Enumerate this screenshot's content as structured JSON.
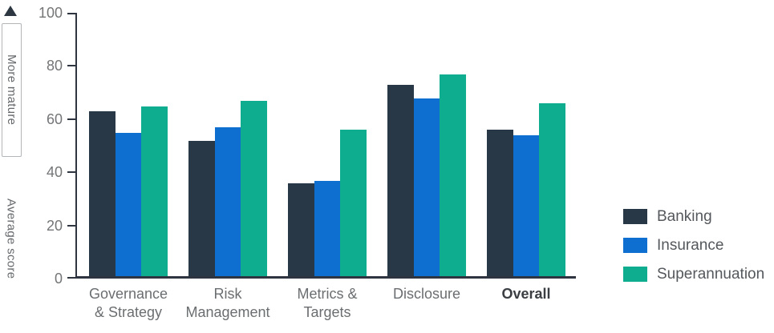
{
  "left_rail": {
    "more_mature_label": "More mature",
    "average_score_label": "Average score"
  },
  "chart_data": {
    "type": "bar",
    "title": "",
    "xlabel": "",
    "ylabel": "Average score",
    "ylim": [
      0,
      100
    ],
    "yticks": [
      0,
      20,
      40,
      60,
      80,
      100
    ],
    "grid": false,
    "legend_position": "right",
    "annotation": "More mature (upward arrow indicates higher scores are more mature)",
    "categories": [
      "Governance\n& Strategy",
      "Risk\nManagement",
      "Metrics &\nTargets",
      "Disclosure",
      "Overall"
    ],
    "emphasized_category": "Overall",
    "series": [
      {
        "name": "Banking",
        "color": "#283847",
        "values": [
          62,
          51,
          35,
          72,
          55
        ]
      },
      {
        "name": "Insurance",
        "color": "#0e6fd0",
        "values": [
          54,
          56,
          36,
          67,
          53
        ]
      },
      {
        "name": "Superannuation",
        "color": "#0ead8f",
        "values": [
          64,
          66,
          55,
          76,
          65
        ]
      }
    ]
  },
  "colors": {
    "axis": "#2e3440",
    "tick_label": "#737577",
    "category_label": "#6b6e70",
    "emphasized_category_label": "#3a3e42",
    "legend_label": "#54585c",
    "arrow": "#2c3742",
    "annotation_box_border": "#b3b6b9"
  }
}
